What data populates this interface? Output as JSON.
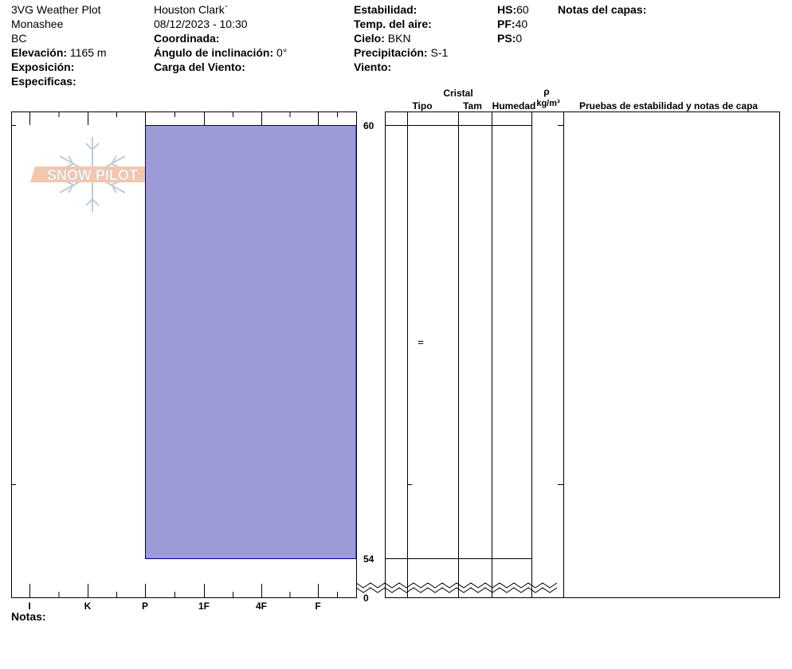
{
  "header": {
    "col1": {
      "title": "3VG Weather Plot",
      "location": "Monashee",
      "region": "BC",
      "elevation_label": "Elevación:",
      "elevation_value": "1165 m",
      "aspect_label": "Exposición:",
      "specifics_label": "Especificas:"
    },
    "col2": {
      "observer": "Houston Clark`",
      "datetime": "08/12/2023 - 10:30",
      "coord_label": "Coordinada:",
      "slope_label": "Ángulo de inclinación:",
      "slope_value": "0°",
      "wind_load_label": "Carga del Viento:"
    },
    "col3": {
      "stability_label": "Estabilidad:",
      "air_temp_label": "Temp. del aire:",
      "sky_label": "Cielo:",
      "sky_value": "BKN",
      "precip_label": "Precipitación:",
      "precip_value": "S-1",
      "wind_label": "Viento:"
    },
    "col4": {
      "hs_label": "HS:",
      "hs_value": "60",
      "pf_label": "PF:",
      "pf_value": "40",
      "ps_label": "PS:",
      "ps_value": "0"
    },
    "layer_notes_label": "Notas del capas:"
  },
  "columns": {
    "crystal": "Cristal",
    "type": "Tipo",
    "size": "Tam",
    "humidity": "Humedad",
    "rho": "ρ",
    "density_unit": "kg/m³",
    "stability_tests": "Pruebas de estabilidad y notas de capa"
  },
  "watermark": "SNOW PILOT",
  "notes_label": "Notas:",
  "layer_symbol": "=",
  "colors": {
    "layer_fill": "#9b9bd7",
    "layer_stroke": "#000080",
    "watermark": "#f0c8b0"
  },
  "chart_data": {
    "type": "bar",
    "title": "",
    "xlabel": "",
    "ylabel": "",
    "hardness_categories": [
      "I",
      "K",
      "P",
      "1F",
      "4F",
      "F"
    ],
    "depth_range_cm": [
      0,
      60
    ],
    "visible_depth_labels": [
      "60",
      "54",
      "0"
    ],
    "layers": [
      {
        "top_cm": 60,
        "bottom_cm": 54,
        "hardness": "P",
        "grain_type_symbol": "="
      }
    ]
  }
}
